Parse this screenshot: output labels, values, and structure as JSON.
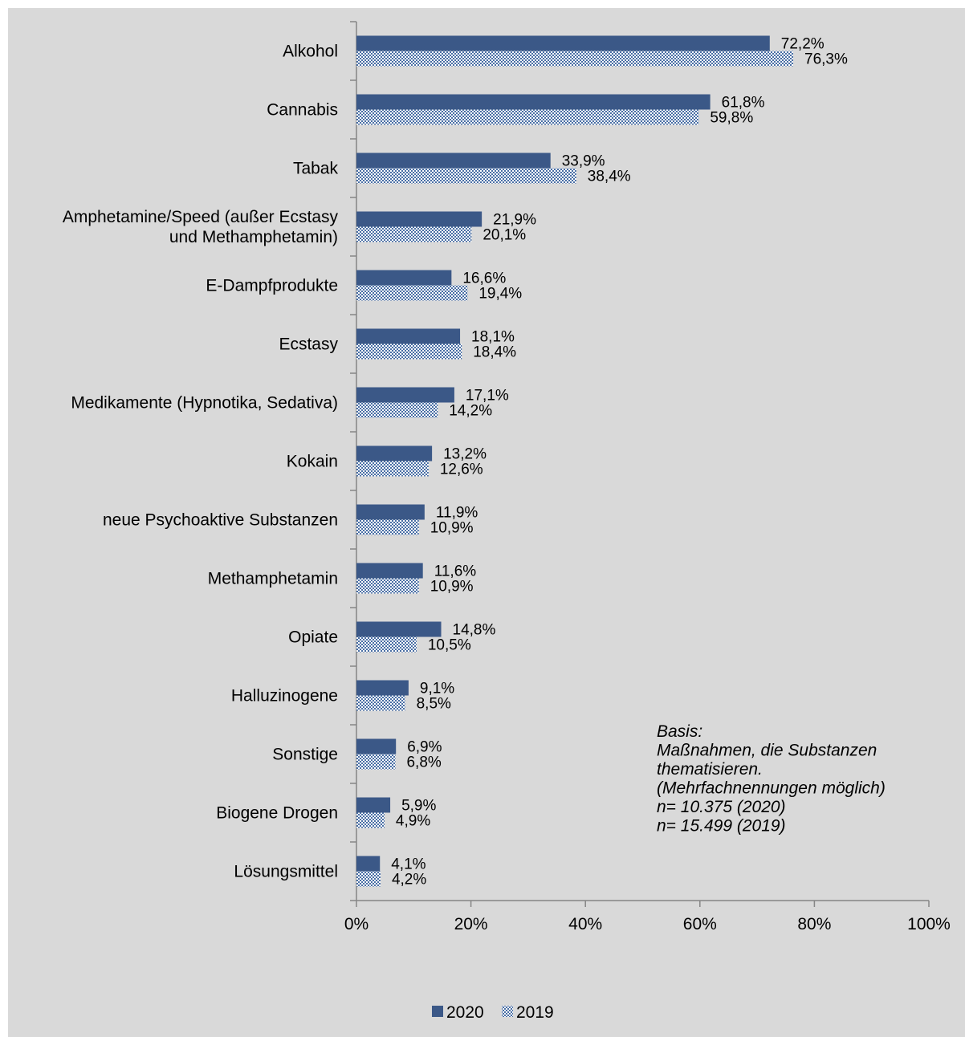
{
  "chart_data": {
    "type": "bar",
    "orientation": "horizontal",
    "categories": [
      "Alkohol",
      "Cannabis",
      "Tabak",
      "Amphetamine/Speed (außer Ecstasy und Methamphetamin)",
      "E-Dampfprodukte",
      "Ecstasy",
      "Medikamente (Hypnotika, Sedativa)",
      "Kokain",
      "neue Psychoaktive Substanzen",
      "Methamphetamin",
      "Opiate",
      "Halluzinogene",
      "Sonstige",
      "Biogene Drogen",
      "Lösungsmittel"
    ],
    "category_display_lines": [
      [
        "Alkohol"
      ],
      [
        "Cannabis"
      ],
      [
        "Tabak"
      ],
      [
        "Amphetamine/Speed (außer Ecstasy",
        "und Methamphetamin)"
      ],
      [
        "E-Dampfprodukte"
      ],
      [
        "Ecstasy"
      ],
      [
        "Medikamente (Hypnotika, Sedativa)"
      ],
      [
        "Kokain"
      ],
      [
        "neue Psychoaktive Substanzen"
      ],
      [
        "Methamphetamin"
      ],
      [
        "Opiate"
      ],
      [
        "Halluzinogene"
      ],
      [
        "Sonstige"
      ],
      [
        "Biogene Drogen"
      ],
      [
        "Lösungsmittel"
      ]
    ],
    "series": [
      {
        "name": "2020",
        "color": "#3b5887",
        "pattern": "solid",
        "values": [
          72.2,
          61.8,
          33.9,
          21.9,
          16.6,
          18.1,
          17.1,
          13.2,
          11.9,
          11.6,
          14.8,
          9.1,
          6.9,
          5.9,
          4.1
        ],
        "labels": [
          "72,2%",
          "61,8%",
          "33,9%",
          "21,9%",
          "16,6%",
          "18,1%",
          "17,1%",
          "13,2%",
          "11,9%",
          "11,6%",
          "14,8%",
          "9,1%",
          "6,9%",
          "5,9%",
          "4,1%"
        ]
      },
      {
        "name": "2019",
        "color": "#4a6fa5",
        "pattern": "checkered",
        "values": [
          76.3,
          59.8,
          38.4,
          20.1,
          19.4,
          18.4,
          14.2,
          12.6,
          10.9,
          10.9,
          10.5,
          8.5,
          6.8,
          4.9,
          4.2
        ],
        "labels": [
          "76,3%",
          "59,8%",
          "38,4%",
          "20,1%",
          "19,4%",
          "18,4%",
          "14,2%",
          "12,6%",
          "10,9%",
          "10,9%",
          "10,5%",
          "8,5%",
          "6,8%",
          "4,9%",
          "4,2%"
        ]
      }
    ],
    "x_ticks": [
      0,
      20,
      40,
      60,
      80,
      100
    ],
    "x_tick_labels": [
      "0%",
      "20%",
      "40%",
      "60%",
      "80%",
      "100%"
    ],
    "xlim": [
      0,
      100
    ],
    "title": "",
    "xlabel": "",
    "ylabel": "",
    "grid": false,
    "legend_position": "bottom",
    "background_color": "#d9d9d9",
    "note_lines": [
      "Basis:",
      "Maßnahmen, die Substanzen",
      "thematisieren.",
      "(Mehrfachnennungen möglich)",
      "n= 10.375 (2020)",
      "n= 15.499 (2019)"
    ]
  }
}
